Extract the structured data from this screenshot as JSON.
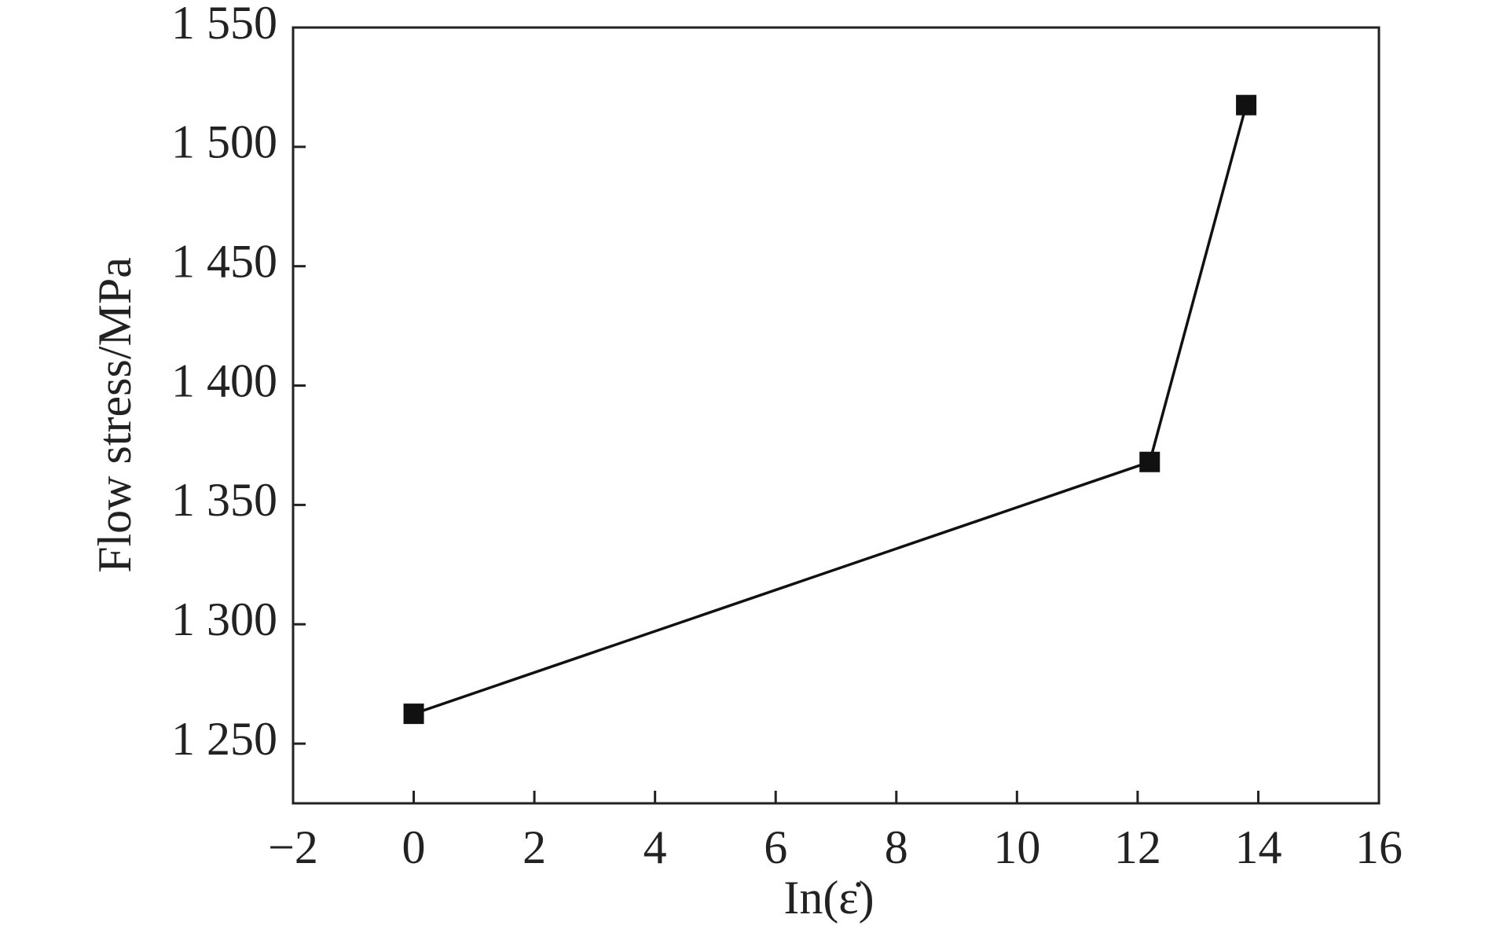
{
  "chart_data": {
    "type": "line",
    "x_label": "In(ε̇)",
    "y_label": "Flow stress/MPa",
    "x": [
      0,
      12.2,
      13.8
    ],
    "series": [
      {
        "name": "Flow stress",
        "color": "#111111",
        "values": [
          1262.5,
          1368,
          1517.5
        ]
      }
    ],
    "marker": "square",
    "xlim": [
      -2,
      16
    ],
    "xticks": [
      {
        "value": -2,
        "label": "−2"
      },
      0,
      2,
      4,
      6,
      8,
      10,
      12,
      14,
      16
    ],
    "ylim": [
      1225,
      1550
    ],
    "yticks": [
      {
        "value": 1250,
        "label": "1 250"
      },
      {
        "value": 1300,
        "label": "1 300"
      },
      {
        "value": 1350,
        "label": "1 350"
      },
      {
        "value": 1400,
        "label": "1 400"
      },
      {
        "value": 1450,
        "label": "1 450"
      },
      {
        "value": 1500,
        "label": "1 500"
      },
      {
        "value": 1550,
        "label": "1 550"
      }
    ],
    "grid": false
  }
}
